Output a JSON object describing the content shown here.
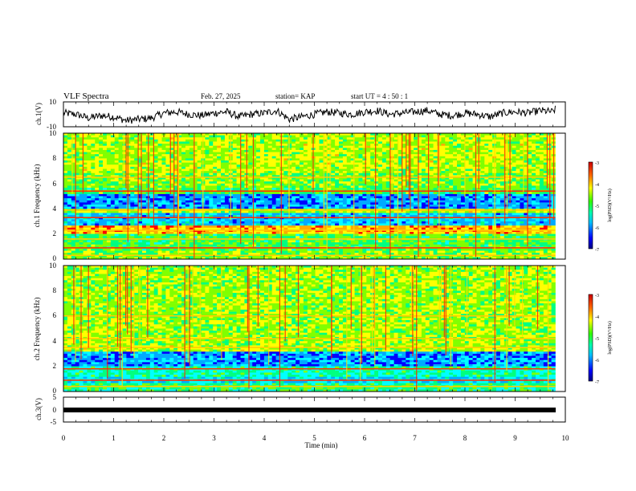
{
  "header": {
    "title": "VLF Spectra",
    "date": "Feb. 27, 2025",
    "station": "station= KAP",
    "start": "start  UT =   4 : 50 : 1"
  },
  "chart_data": [
    {
      "type": "line",
      "panel": "ch1-waveform",
      "ylabel": "ch.1(V)",
      "ylim": [
        -10,
        10
      ],
      "yticks": [
        "10",
        "-10"
      ],
      "xlim": [
        0,
        10
      ],
      "trace_extent_min": 9.8,
      "series": [
        {
          "x": [
            0,
            0.25,
            0.5,
            0.75,
            1.0,
            1.25,
            1.5,
            1.75,
            2.0,
            2.25,
            2.5,
            2.75,
            3.0,
            3.25,
            3.5,
            3.75,
            4.0,
            4.25,
            4.5,
            4.75,
            5.0,
            5.25,
            5.5,
            5.75,
            6.0,
            6.25,
            6.5,
            6.75,
            7.0,
            7.25,
            7.5,
            7.75,
            8.0,
            8.25,
            8.5,
            8.75,
            9.0,
            9.25,
            9.5,
            9.75,
            9.8
          ],
          "values": [
            1,
            0,
            -3,
            -1,
            -2,
            -5,
            -4,
            -3,
            1,
            2,
            0,
            -1,
            1,
            2,
            -2,
            0,
            1,
            3,
            -4,
            -2,
            0,
            2,
            1,
            0,
            2,
            3,
            0,
            1,
            2,
            3,
            0,
            -1,
            1,
            0,
            -2,
            1,
            2,
            1,
            3,
            2,
            4
          ]
        }
      ]
    },
    {
      "type": "heatmap",
      "panel": "ch1-spectrogram",
      "ylabel": "ch.1 Frequency (kHz)",
      "ylim": [
        0,
        10
      ],
      "yticks": [
        "0",
        "2",
        "4",
        "6",
        "8",
        "10"
      ],
      "xlim": [
        0,
        10
      ],
      "colorbar": {
        "label": "log(PSD)(V²/Hz)",
        "range": [
          -7,
          -3
        ],
        "ticks": [
          "-3",
          "-4",
          "-5",
          "-6",
          "-7"
        ]
      }
    },
    {
      "type": "heatmap",
      "panel": "ch2-spectrogram",
      "ylabel": "ch.2 Frequency (kHz)",
      "ylim": [
        0,
        10
      ],
      "yticks": [
        "0",
        "2",
        "4",
        "6",
        "8",
        "10"
      ],
      "xlim": [
        0,
        10
      ],
      "colorbar": {
        "label": "log(PSD)(V²/Hz)",
        "range": [
          -7,
          -3
        ],
        "ticks": [
          "-3",
          "-4",
          "-5",
          "-6",
          "-7"
        ]
      }
    },
    {
      "type": "line",
      "panel": "ch3-signal",
      "ylabel": "ch.3(V)",
      "ylim": [
        -5,
        5
      ],
      "yticks": [
        "5",
        "0",
        "-5"
      ],
      "xlim": [
        0,
        10
      ],
      "series": [
        {
          "x": [
            0,
            9.8
          ],
          "values": [
            0,
            0
          ]
        }
      ]
    }
  ],
  "x_axis": {
    "label": "Time (min)",
    "ticks": [
      "0",
      "1",
      "2",
      "3",
      "4",
      "5",
      "6",
      "7",
      "8",
      "9",
      "10"
    ]
  },
  "colors": {
    "colormap": [
      "#000080",
      "#0000ff",
      "#00aaff",
      "#00ffff",
      "#00ff80",
      "#80ff00",
      "#ffff00",
      "#ffaa00",
      "#ff0000",
      "#8b0000"
    ]
  }
}
